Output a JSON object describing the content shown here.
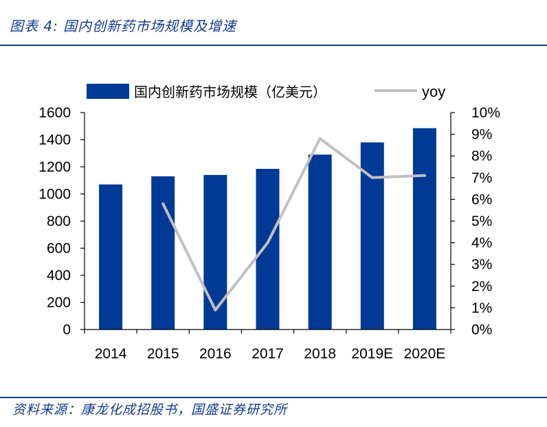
{
  "header": {
    "title": "图表 4:  国内创新药市场规模及增速"
  },
  "footer": {
    "source": "资料来源：康龙化成招股书，国盛证券研究所"
  },
  "chart_data": {
    "type": "bar",
    "categories": [
      "2014",
      "2015",
      "2016",
      "2017",
      "2018",
      "2019E",
      "2020E"
    ],
    "series": [
      {
        "name": "国内创新药市场规模（亿美元）",
        "type": "bar",
        "axis": "left",
        "values": [
          1070,
          1130,
          1140,
          1185,
          1290,
          1380,
          1485
        ]
      },
      {
        "name": "yoy",
        "type": "line",
        "axis": "right",
        "values": [
          null,
          5.8,
          0.9,
          4.0,
          8.8,
          7.0,
          7.1
        ]
      }
    ],
    "ylim": [
      0,
      1600
    ],
    "y2lim": [
      0,
      10
    ],
    "yticks": [
      "0",
      "200",
      "400",
      "600",
      "800",
      "1000",
      "1200",
      "1400",
      "1600"
    ],
    "y2ticks": [
      "0%",
      "1%",
      "2%",
      "3%",
      "4%",
      "5%",
      "6%",
      "7%",
      "8%",
      "9%",
      "10%"
    ],
    "legend_position": "top",
    "grid": false,
    "colors": {
      "bar": "#003a96",
      "line": "#c0c0c0",
      "axis": "#000000",
      "accent": "#123a8c"
    }
  }
}
